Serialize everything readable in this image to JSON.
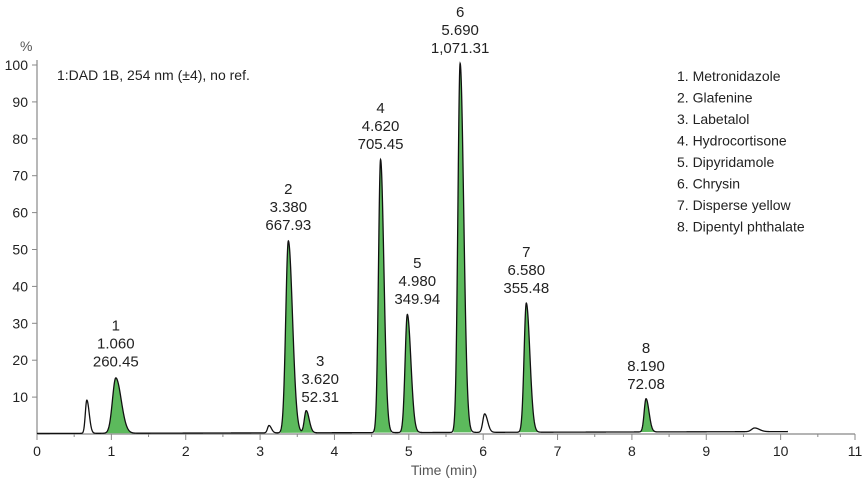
{
  "chart_data": {
    "type": "line",
    "title": "",
    "condition": "1:DAD 1B, 254 nm (±4), no ref.",
    "xlabel": "Time (min)",
    "ylabel": "%",
    "xlim": [
      0,
      11
    ],
    "ylim": [
      0,
      100
    ],
    "x_ticks": [
      "0",
      "1",
      "2",
      "3",
      "4",
      "5",
      "6",
      "7",
      "8",
      "9",
      "10",
      "11"
    ],
    "y_ticks": [
      "10",
      "20",
      "30",
      "40",
      "50",
      "60",
      "70",
      "80",
      "90",
      "100"
    ],
    "grid": false,
    "legend_position": "top-right",
    "peaks": [
      {
        "number": "1",
        "time": "1.060",
        "area": "260.45",
        "x": 1.06,
        "height": 15,
        "width": 0.045
      },
      {
        "number": "2",
        "time": "3.380",
        "area": "667.93",
        "x": 3.38,
        "height": 52,
        "width": 0.035
      },
      {
        "number": "3",
        "time": "3.620",
        "area": "52.31",
        "x": 3.62,
        "height": 6,
        "width": 0.025
      },
      {
        "number": "4",
        "time": "4.620",
        "area": "705.45",
        "x": 4.62,
        "height": 74,
        "width": 0.028
      },
      {
        "number": "5",
        "time": "4.980",
        "area": "349.94",
        "x": 4.98,
        "height": 32,
        "width": 0.03
      },
      {
        "number": "6",
        "time": "5.690",
        "area": "1,071.31",
        "x": 5.69,
        "height": 100,
        "width": 0.03
      },
      {
        "number": "7",
        "time": "6.580",
        "area": "355.48",
        "x": 6.58,
        "height": 35,
        "width": 0.03
      },
      {
        "number": "8",
        "time": "8.190",
        "area": "72.08",
        "x": 8.19,
        "height": 9,
        "width": 0.025
      }
    ],
    "minor_peaks": [
      {
        "x": 0.67,
        "height": 9,
        "width": 0.02
      },
      {
        "x": 3.12,
        "height": 2,
        "width": 0.02
      },
      {
        "x": 6.02,
        "height": 5,
        "width": 0.025
      },
      {
        "x": 9.65,
        "height": 1,
        "width": 0.04
      }
    ],
    "legend": [
      "1. Metronidazole",
      "2. Glafenine",
      "3. Labetalol",
      "4. Hydrocortisone",
      "5. Dipyridamole",
      "6. Chrysin",
      "7. Disperse yellow",
      "8. Dipentyl phthalate"
    ],
    "colors": {
      "trace": "#111111",
      "fill": "#3fae3f",
      "axis": "#888888",
      "text": "#222222"
    }
  }
}
